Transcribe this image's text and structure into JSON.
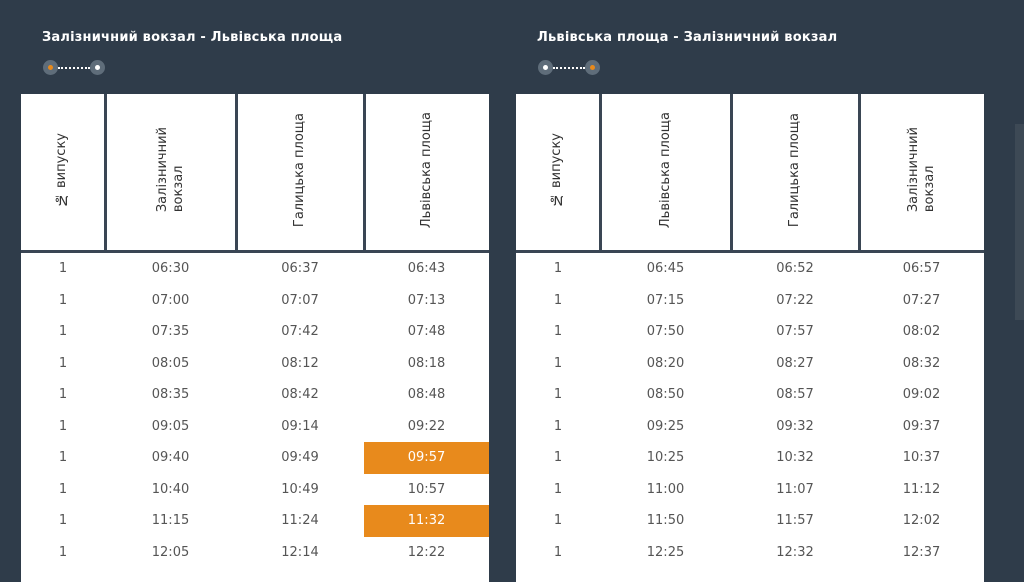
{
  "panels": [
    {
      "title": "Залізничний вокзал - Львівська площа",
      "headers": [
        "№ випуску",
        "Залізничний\nвокзал",
        "Галицька площа",
        "Львівська площа"
      ],
      "rows": [
        [
          "1",
          "06:30",
          "06:37",
          "06:43"
        ],
        [
          "1",
          "07:00",
          "07:07",
          "07:13"
        ],
        [
          "1",
          "07:35",
          "07:42",
          "07:48"
        ],
        [
          "1",
          "08:05",
          "08:12",
          "08:18"
        ],
        [
          "1",
          "08:35",
          "08:42",
          "08:48"
        ],
        [
          "1",
          "09:05",
          "09:14",
          "09:22"
        ],
        [
          "1",
          "09:40",
          "09:49",
          "09:57"
        ],
        [
          "1",
          "10:40",
          "10:49",
          "10:57"
        ],
        [
          "1",
          "11:15",
          "11:24",
          "11:32"
        ],
        [
          "1",
          "12:05",
          "12:14",
          "12:22"
        ]
      ],
      "highlighted": [
        [
          6,
          3
        ],
        [
          8,
          3
        ]
      ]
    },
    {
      "title": "Львівська площа - Залізничний вокзал",
      "headers": [
        "№ випуску",
        "Львівська площа",
        "Галицька площа",
        "Залізничний\nвокзал"
      ],
      "rows": [
        [
          "1",
          "06:45",
          "06:52",
          "06:57"
        ],
        [
          "1",
          "07:15",
          "07:22",
          "07:27"
        ],
        [
          "1",
          "07:50",
          "07:57",
          "08:02"
        ],
        [
          "1",
          "08:20",
          "08:27",
          "08:32"
        ],
        [
          "1",
          "08:50",
          "08:57",
          "09:02"
        ],
        [
          "1",
          "09:25",
          "09:32",
          "09:37"
        ],
        [
          "1",
          "10:25",
          "10:32",
          "10:37"
        ],
        [
          "1",
          "11:00",
          "11:07",
          "11:12"
        ],
        [
          "1",
          "11:50",
          "11:57",
          "12:02"
        ],
        [
          "1",
          "12:25",
          "12:32",
          "12:37"
        ]
      ],
      "highlighted": []
    }
  ],
  "colors": {
    "background": "#2f3c4a",
    "highlight": "#e88a1c",
    "grid": "#3a4654"
  }
}
